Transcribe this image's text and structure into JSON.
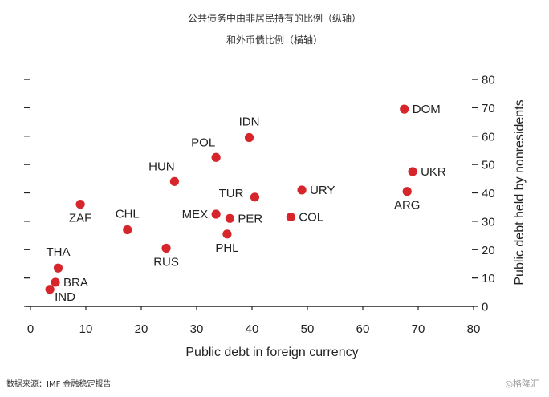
{
  "header": {
    "title_line1": "公共债务中由非居民持有的比例（纵轴）",
    "title_line2": "和外币债比例（横轴）"
  },
  "footer": {
    "source": "数据来源：IMF 金融稳定报告",
    "watermark": "◎格隆汇"
  },
  "chart_data": {
    "type": "scatter",
    "xlabel": "Public debt in foreign currency",
    "ylabel": "Public debt held by nonresidents",
    "xlim": [
      0,
      80
    ],
    "ylim": [
      0,
      80
    ],
    "xticks": [
      "0",
      "10",
      "20",
      "30",
      "40",
      "50",
      "60",
      "70",
      "80"
    ],
    "yticks": [
      "0",
      "10",
      "20",
      "30",
      "40",
      "50",
      "60",
      "70",
      "80"
    ],
    "grid": false,
    "marker_color": "#d7262b",
    "points": [
      {
        "label": "DOM",
        "x": 67.5,
        "y": 69.5,
        "pos": "right"
      },
      {
        "label": "IDN",
        "x": 39.5,
        "y": 59.5,
        "pos": "above"
      },
      {
        "label": "POL",
        "x": 33.5,
        "y": 52.5,
        "pos": "above-left"
      },
      {
        "label": "HUN",
        "x": 26.0,
        "y": 44.0,
        "pos": "above-left"
      },
      {
        "label": "UKR",
        "x": 69.0,
        "y": 47.5,
        "pos": "right"
      },
      {
        "label": "ARG",
        "x": 68.0,
        "y": 40.5,
        "pos": "below"
      },
      {
        "label": "URY",
        "x": 49.0,
        "y": 41.0,
        "pos": "right"
      },
      {
        "label": "TUR",
        "x": 40.5,
        "y": 38.5,
        "pos": "left-up"
      },
      {
        "label": "ZAF",
        "x": 9.0,
        "y": 36.0,
        "pos": "below-left"
      },
      {
        "label": "MEX",
        "x": 33.5,
        "y": 32.5,
        "pos": "left"
      },
      {
        "label": "PER",
        "x": 36.0,
        "y": 31.0,
        "pos": "right"
      },
      {
        "label": "COL",
        "x": 47.0,
        "y": 31.5,
        "pos": "right"
      },
      {
        "label": "CHL",
        "x": 17.5,
        "y": 27.0,
        "pos": "above"
      },
      {
        "label": "PHL",
        "x": 35.5,
        "y": 25.5,
        "pos": "below"
      },
      {
        "label": "RUS",
        "x": 24.5,
        "y": 20.5,
        "pos": "below"
      },
      {
        "label": "THA",
        "x": 5.0,
        "y": 13.5,
        "pos": "above"
      },
      {
        "label": "BRA",
        "x": 4.5,
        "y": 8.5,
        "pos": "right"
      },
      {
        "label": "IND",
        "x": 3.5,
        "y": 6.0,
        "pos": "right-down"
      }
    ]
  }
}
